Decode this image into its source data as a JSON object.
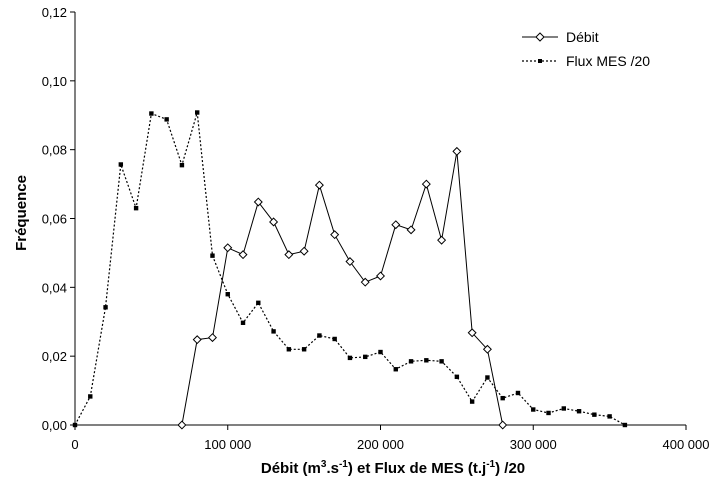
{
  "chart_data": {
    "type": "line",
    "xlabel_parts": {
      "a": "Débit (m",
      "a_sup": "3",
      "b": ".s",
      "b_sup": "-1",
      "c": ") et Flux de MES (t.j",
      "c_sup": "-1",
      "d": ") /20"
    },
    "ylabel": "Fréquence",
    "xlim": [
      0,
      400000
    ],
    "ylim": [
      0,
      0.12
    ],
    "x_ticks": [
      0,
      100000,
      200000,
      300000,
      400000
    ],
    "x_tick_labels": [
      "0",
      "100 000",
      "200 000",
      "300 000",
      "400 000"
    ],
    "y_ticks": [
      0,
      0.02,
      0.04,
      0.06,
      0.08,
      0.1,
      0.12
    ],
    "y_tick_labels": [
      "0,00",
      "0,02",
      "0,04",
      "0,06",
      "0,08",
      "0,10",
      "0,12"
    ],
    "grid": false,
    "legend_position": "top-right",
    "series": [
      {
        "name": "Débit",
        "line_style": "solid",
        "marker": "open-diamond",
        "color": "#000000",
        "x": [
          70000,
          80000,
          90000,
          100000,
          110000,
          120000,
          130000,
          140000,
          150000,
          160000,
          170000,
          180000,
          190000,
          200000,
          210000,
          220000,
          230000,
          240000,
          250000,
          260000,
          270000,
          280000
        ],
        "y": [
          0.0,
          0.0248,
          0.0254,
          0.0515,
          0.0495,
          0.0648,
          0.059,
          0.0495,
          0.0505,
          0.0697,
          0.0553,
          0.0475,
          0.0415,
          0.0433,
          0.0582,
          0.0567,
          0.07,
          0.0537,
          0.0795,
          0.0268,
          0.022,
          0.0
        ]
      },
      {
        "name": "Flux MES /20",
        "line_style": "dotted",
        "marker": "filled-square",
        "color": "#000000",
        "x": [
          0,
          10000,
          20000,
          30000,
          40000,
          50000,
          60000,
          70000,
          80000,
          90000,
          100000,
          110000,
          120000,
          130000,
          140000,
          150000,
          160000,
          170000,
          180000,
          190000,
          200000,
          210000,
          220000,
          230000,
          240000,
          250000,
          260000,
          270000,
          280000,
          290000,
          300000,
          310000,
          320000,
          330000,
          340000,
          350000,
          360000
        ],
        "y": [
          0.0,
          0.0083,
          0.0342,
          0.0757,
          0.063,
          0.0905,
          0.0888,
          0.0755,
          0.0908,
          0.0492,
          0.038,
          0.0297,
          0.0355,
          0.0272,
          0.022,
          0.022,
          0.026,
          0.025,
          0.0195,
          0.0198,
          0.0212,
          0.0162,
          0.0185,
          0.0188,
          0.0185,
          0.014,
          0.0068,
          0.0138,
          0.0078,
          0.0093,
          0.0045,
          0.0035,
          0.0048,
          0.004,
          0.003,
          0.0025,
          0.0
        ]
      }
    ]
  }
}
